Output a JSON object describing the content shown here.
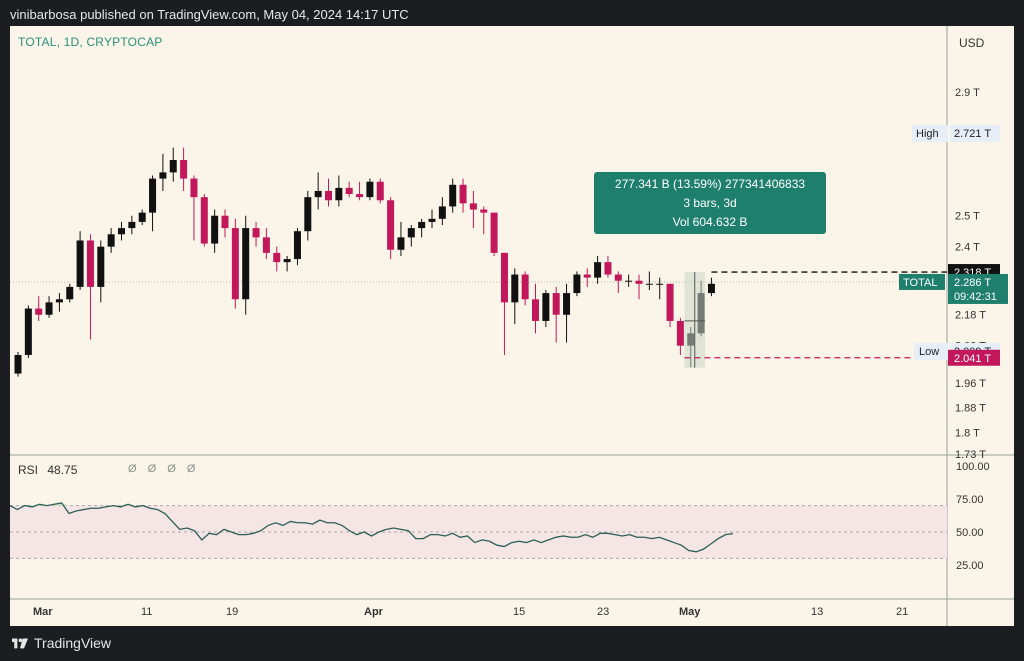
{
  "header": {
    "title": "vinibarbosa published on TradingView.com, May 04, 2024 14:17 UTC"
  },
  "symbol": {
    "text": "TOTAL, 1D, CRYPTOCAP"
  },
  "currency": "USD",
  "rsi": {
    "name": "RSI",
    "value": "48.75",
    "icons": "Ø Ø Ø Ø"
  },
  "price_axis": {
    "ticks": [
      "2.9 T",
      "2.5 T",
      "2.4 T",
      "2.18 T",
      "2.08 T",
      "1.96 T",
      "1.88 T",
      "1.8 T",
      "1.73 T"
    ]
  },
  "rsi_axis": {
    "ticks": [
      "100.00",
      "75.00",
      "50.00",
      "25.00"
    ]
  },
  "time_axis": {
    "ticks": [
      "Mar",
      "11",
      "19",
      "Apr",
      "15",
      "23",
      "May",
      "13",
      "21"
    ]
  },
  "labels": {
    "high_tag": "High",
    "high_value": "2.721 T",
    "low_tag": "Low",
    "low_value": "2.009 T",
    "black_price": "2.318 T",
    "red_price": "2.041 T",
    "total_tag": "TOTAL",
    "total_price": "2.286 T",
    "countdown": "09:42:31"
  },
  "measure_box": {
    "line1": "277.341 B (13.59%) 277341406833",
    "line2": "3 bars, 3d",
    "line3": "Vol 604.632 B"
  },
  "footer": {
    "brand": "TradingView"
  },
  "colors": {
    "up": "#111111",
    "down": "#c2185b",
    "accent": "#2a8f7b",
    "background": "#faf5e8"
  },
  "chart_data": {
    "type": "candlestick",
    "title": "TOTAL, 1D, CRYPTOCAP",
    "ylim": [
      1.73,
      3.0
    ],
    "rsi_ylim": [
      0,
      100
    ],
    "candles": [
      {
        "o": 1.99,
        "h": 2.06,
        "l": 1.98,
        "c": 2.05
      },
      {
        "o": 2.05,
        "h": 2.21,
        "l": 2.04,
        "c": 2.2
      },
      {
        "o": 2.2,
        "h": 2.24,
        "l": 2.16,
        "c": 2.18
      },
      {
        "o": 2.18,
        "h": 2.24,
        "l": 2.17,
        "c": 2.22
      },
      {
        "o": 2.22,
        "h": 2.25,
        "l": 2.19,
        "c": 2.23
      },
      {
        "o": 2.23,
        "h": 2.28,
        "l": 2.22,
        "c": 2.27
      },
      {
        "o": 2.27,
        "h": 2.45,
        "l": 2.26,
        "c": 2.42
      },
      {
        "o": 2.42,
        "h": 2.44,
        "l": 2.1,
        "c": 2.27
      },
      {
        "o": 2.27,
        "h": 2.42,
        "l": 2.22,
        "c": 2.4
      },
      {
        "o": 2.4,
        "h": 2.46,
        "l": 2.38,
        "c": 2.44
      },
      {
        "o": 2.44,
        "h": 2.48,
        "l": 2.42,
        "c": 2.46
      },
      {
        "o": 2.46,
        "h": 2.5,
        "l": 2.44,
        "c": 2.48
      },
      {
        "o": 2.48,
        "h": 2.52,
        "l": 2.47,
        "c": 2.51
      },
      {
        "o": 2.51,
        "h": 2.63,
        "l": 2.45,
        "c": 2.62
      },
      {
        "o": 2.62,
        "h": 2.7,
        "l": 2.58,
        "c": 2.64
      },
      {
        "o": 2.64,
        "h": 2.72,
        "l": 2.61,
        "c": 2.68
      },
      {
        "o": 2.68,
        "h": 2.72,
        "l": 2.58,
        "c": 2.62
      },
      {
        "o": 2.62,
        "h": 2.63,
        "l": 2.42,
        "c": 2.56
      },
      {
        "o": 2.56,
        "h": 2.57,
        "l": 2.4,
        "c": 2.41
      },
      {
        "o": 2.41,
        "h": 2.52,
        "l": 2.38,
        "c": 2.5
      },
      {
        "o": 2.5,
        "h": 2.52,
        "l": 2.43,
        "c": 2.46
      },
      {
        "o": 2.46,
        "h": 2.49,
        "l": 2.2,
        "c": 2.23
      },
      {
        "o": 2.23,
        "h": 2.5,
        "l": 2.18,
        "c": 2.46
      },
      {
        "o": 2.46,
        "h": 2.48,
        "l": 2.4,
        "c": 2.43
      },
      {
        "o": 2.43,
        "h": 2.46,
        "l": 2.36,
        "c": 2.38
      },
      {
        "o": 2.38,
        "h": 2.4,
        "l": 2.32,
        "c": 2.35
      },
      {
        "o": 2.35,
        "h": 2.37,
        "l": 2.32,
        "c": 2.36
      },
      {
        "o": 2.36,
        "h": 2.46,
        "l": 2.34,
        "c": 2.45
      },
      {
        "o": 2.45,
        "h": 2.58,
        "l": 2.42,
        "c": 2.56
      },
      {
        "o": 2.56,
        "h": 2.64,
        "l": 2.52,
        "c": 2.58
      },
      {
        "o": 2.58,
        "h": 2.62,
        "l": 2.53,
        "c": 2.55
      },
      {
        "o": 2.55,
        "h": 2.63,
        "l": 2.53,
        "c": 2.59
      },
      {
        "o": 2.59,
        "h": 2.61,
        "l": 2.56,
        "c": 2.57
      },
      {
        "o": 2.57,
        "h": 2.61,
        "l": 2.55,
        "c": 2.56
      },
      {
        "o": 2.56,
        "h": 2.62,
        "l": 2.55,
        "c": 2.61
      },
      {
        "o": 2.61,
        "h": 2.62,
        "l": 2.54,
        "c": 2.55
      },
      {
        "o": 2.55,
        "h": 2.56,
        "l": 2.36,
        "c": 2.39
      },
      {
        "o": 2.39,
        "h": 2.48,
        "l": 2.37,
        "c": 2.43
      },
      {
        "o": 2.43,
        "h": 2.47,
        "l": 2.4,
        "c": 2.46
      },
      {
        "o": 2.46,
        "h": 2.49,
        "l": 2.43,
        "c": 2.48
      },
      {
        "o": 2.48,
        "h": 2.52,
        "l": 2.46,
        "c": 2.49
      },
      {
        "o": 2.49,
        "h": 2.56,
        "l": 2.47,
        "c": 2.53
      },
      {
        "o": 2.53,
        "h": 2.62,
        "l": 2.51,
        "c": 2.6
      },
      {
        "o": 2.6,
        "h": 2.62,
        "l": 2.51,
        "c": 2.54
      },
      {
        "o": 2.54,
        "h": 2.58,
        "l": 2.46,
        "c": 2.52
      },
      {
        "o": 2.52,
        "h": 2.53,
        "l": 2.44,
        "c": 2.51
      },
      {
        "o": 2.51,
        "h": 2.51,
        "l": 2.37,
        "c": 2.38
      },
      {
        "o": 2.38,
        "h": 2.38,
        "l": 2.05,
        "c": 2.22
      },
      {
        "o": 2.22,
        "h": 2.33,
        "l": 2.15,
        "c": 2.31
      },
      {
        "o": 2.31,
        "h": 2.32,
        "l": 2.21,
        "c": 2.23
      },
      {
        "o": 2.23,
        "h": 2.28,
        "l": 2.12,
        "c": 2.16
      },
      {
        "o": 2.16,
        "h": 2.26,
        "l": 2.14,
        "c": 2.25
      },
      {
        "o": 2.25,
        "h": 2.27,
        "l": 2.09,
        "c": 2.18
      },
      {
        "o": 2.18,
        "h": 2.28,
        "l": 2.09,
        "c": 2.25
      },
      {
        "o": 2.25,
        "h": 2.32,
        "l": 2.24,
        "c": 2.31
      },
      {
        "o": 2.31,
        "h": 2.33,
        "l": 2.27,
        "c": 2.3
      },
      {
        "o": 2.3,
        "h": 2.37,
        "l": 2.28,
        "c": 2.35
      },
      {
        "o": 2.35,
        "h": 2.37,
        "l": 2.3,
        "c": 2.31
      },
      {
        "o": 2.31,
        "h": 2.32,
        "l": 2.25,
        "c": 2.29
      },
      {
        "o": 2.29,
        "h": 2.31,
        "l": 2.27,
        "c": 2.29
      },
      {
        "o": 2.29,
        "h": 2.31,
        "l": 2.23,
        "c": 2.28
      },
      {
        "o": 2.28,
        "h": 2.32,
        "l": 2.26,
        "c": 2.28
      },
      {
        "o": 2.28,
        "h": 2.3,
        "l": 2.23,
        "c": 2.28
      },
      {
        "o": 2.28,
        "h": 2.28,
        "l": 2.14,
        "c": 2.16
      },
      {
        "o": 2.16,
        "h": 2.17,
        "l": 2.05,
        "c": 2.08
      },
      {
        "o": 2.08,
        "h": 2.14,
        "l": 2.01,
        "c": 2.12
      },
      {
        "o": 2.12,
        "h": 2.29,
        "l": 2.11,
        "c": 2.25
      },
      {
        "o": 2.25,
        "h": 2.3,
        "l": 2.24,
        "c": 2.28
      }
    ],
    "rsi_values": [
      70,
      67,
      70,
      69,
      71,
      70,
      71,
      72,
      64,
      66,
      67,
      68,
      68,
      69,
      70,
      69,
      71,
      69,
      70,
      68,
      67,
      64,
      58,
      52,
      53,
      51,
      44,
      49,
      48,
      52,
      50,
      48,
      48,
      49,
      51,
      55,
      57,
      55,
      58,
      57,
      57,
      56,
      59,
      57,
      57,
      55,
      51,
      48,
      50,
      47,
      50,
      52,
      53,
      52,
      51,
      45,
      45,
      48,
      48,
      47,
      49,
      46,
      47,
      42,
      44,
      43,
      40,
      39,
      42,
      43,
      42,
      44,
      42,
      44,
      46,
      47,
      46,
      46,
      48,
      46,
      49,
      49,
      48,
      47,
      48,
      46,
      46,
      45,
      46,
      44,
      42,
      40,
      36,
      35,
      37,
      41,
      45,
      48,
      48.75
    ],
    "rsi_bands": [
      30,
      50,
      70
    ]
  }
}
